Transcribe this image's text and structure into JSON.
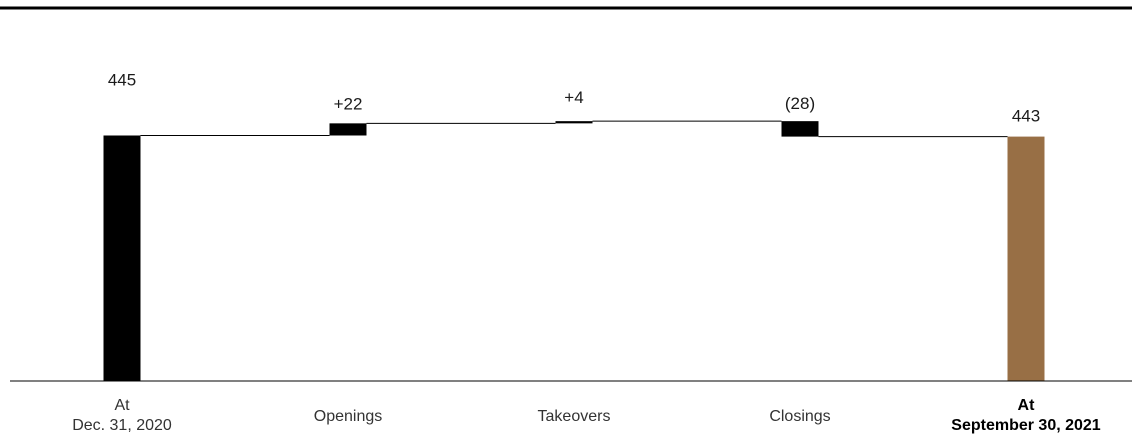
{
  "chart_data": {
    "type": "waterfall",
    "title": "",
    "categories": [
      {
        "lines": [
          "At",
          "Dec. 31, 2020"
        ],
        "bold": false
      },
      {
        "lines": [
          "Openings"
        ],
        "bold": false
      },
      {
        "lines": [
          "Takeovers"
        ],
        "bold": false
      },
      {
        "lines": [
          "Closings"
        ],
        "bold": false
      },
      {
        "lines": [
          "At",
          "September 30, 2021"
        ],
        "bold": true
      }
    ],
    "values": [
      445,
      22,
      4,
      -28,
      443
    ],
    "kinds": [
      "total",
      "delta",
      "delta",
      "delta",
      "total"
    ],
    "labels": [
      "445",
      "+22",
      "+4",
      "(28)",
      "443"
    ],
    "colors": {
      "start_total": "#000000",
      "change": "#000000",
      "end_total": "#986f45",
      "connector": "#000000"
    },
    "ylim": [
      0,
      471
    ]
  }
}
